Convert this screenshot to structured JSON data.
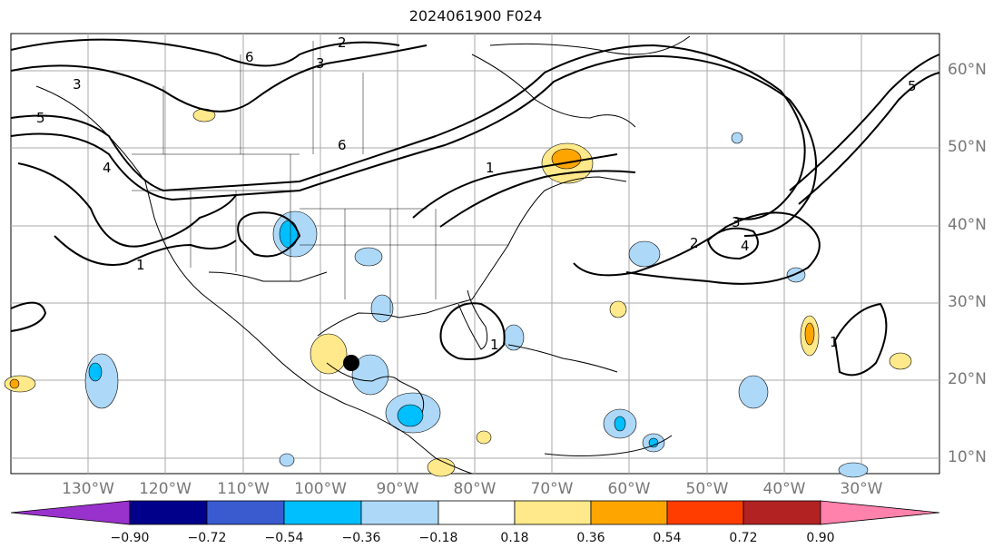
{
  "title": "2024061900 F024",
  "lat_labels": [
    "60°N",
    "50°N",
    "40°N",
    "30°N",
    "20°N",
    "10°N"
  ],
  "lon_labels": [
    "130°W",
    "120°W",
    "110°W",
    "100°W",
    "90°W",
    "80°W",
    "70°W",
    "60°W",
    "50°W",
    "40°W",
    "30°W"
  ],
  "colorbar": {
    "ticks": [
      "−0.90",
      "−0.72",
      "−0.54",
      "−0.36",
      "−0.18",
      "0.18",
      "0.36",
      "0.54",
      "0.72",
      "0.90"
    ],
    "colors": [
      "#9932cc",
      "#00008b",
      "#3a5bd0",
      "#00bfff",
      "#add8f7",
      "#ffffff",
      "#ffe98a",
      "#ffa500",
      "#ff3d00",
      "#b22222",
      "#ff82ac"
    ]
  },
  "contour_labels": [
    "1",
    "2",
    "3",
    "4",
    "5",
    "6"
  ],
  "marker": "storm-center-dot"
}
